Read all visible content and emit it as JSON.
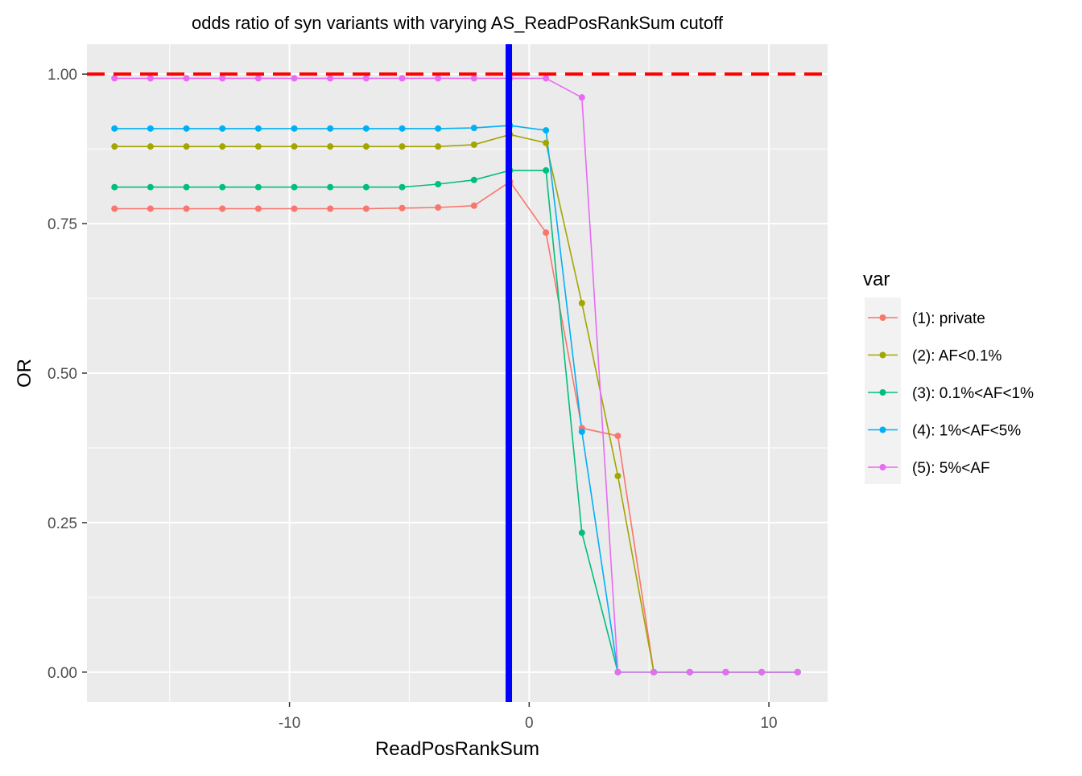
{
  "chart_data": {
    "type": "line",
    "title": "odds ratio of syn variants with varying AS_ReadPosRankSum cutoff",
    "xlabel": "ReadPosRankSum",
    "ylabel": "OR",
    "xlim": [
      -18.45,
      12.45
    ],
    "ylim": [
      -0.05,
      1.05
    ],
    "x_ticks": [
      -10,
      0,
      10
    ],
    "x_tick_labels": [
      "-10",
      "0",
      "10"
    ],
    "y_ticks": [
      0.0,
      0.25,
      0.5,
      0.75,
      1.0
    ],
    "y_tick_labels": [
      "0.00",
      "0.25",
      "0.50",
      "0.75",
      "1.00"
    ],
    "grid": true,
    "legend": {
      "title": "var",
      "position": "right"
    },
    "x": [
      -17.3,
      -15.8,
      -14.3,
      -12.8,
      -11.3,
      -9.8,
      -8.3,
      -6.8,
      -5.3,
      -3.8,
      -2.3,
      -0.8,
      0.7,
      2.2,
      3.7,
      5.2,
      6.7,
      8.2,
      9.7,
      11.2
    ],
    "series": [
      {
        "name": "(1): private",
        "color": "#F8766D",
        "values": [
          0.775,
          0.775,
          0.775,
          0.775,
          0.775,
          0.775,
          0.775,
          0.775,
          0.776,
          0.777,
          0.78,
          0.82,
          0.735,
          0.408,
          0.395,
          0.0,
          0.0,
          0.0,
          0.0,
          0.0
        ]
      },
      {
        "name": "(2): AF<0.1%",
        "color": "#A3A500",
        "values": [
          0.879,
          0.879,
          0.879,
          0.879,
          0.879,
          0.879,
          0.879,
          0.879,
          0.879,
          0.879,
          0.882,
          0.899,
          0.885,
          0.617,
          0.328,
          0.0,
          0.0,
          0.0,
          0.0,
          0.0
        ]
      },
      {
        "name": "(3): 0.1%<AF<1%",
        "color": "#00BF7D",
        "values": [
          0.811,
          0.811,
          0.811,
          0.811,
          0.811,
          0.811,
          0.811,
          0.811,
          0.811,
          0.816,
          0.823,
          0.839,
          0.839,
          0.233,
          0.0,
          0.0,
          0.0,
          0.0,
          0.0,
          0.0
        ]
      },
      {
        "name": "(4): 1%<AF<5%",
        "color": "#00B0F6",
        "values": [
          0.909,
          0.909,
          0.909,
          0.909,
          0.909,
          0.909,
          0.909,
          0.909,
          0.909,
          0.909,
          0.91,
          0.914,
          0.906,
          0.402,
          0.0,
          0.0,
          0.0,
          0.0,
          0.0,
          0.0
        ]
      },
      {
        "name": "(5): 5%<AF",
        "color": "#E76BF3",
        "values": [
          0.993,
          0.993,
          0.993,
          0.993,
          0.993,
          0.993,
          0.993,
          0.993,
          0.993,
          0.993,
          0.993,
          0.993,
          0.993,
          0.961,
          0.0,
          0.0,
          0.0,
          0.0,
          0.0,
          0.0
        ]
      }
    ],
    "reference_lines": [
      {
        "orientation": "horizontal",
        "value": 1.0,
        "color": "#FF0000",
        "style": "dashed"
      },
      {
        "orientation": "vertical",
        "value": -0.85,
        "color": "#0000FF",
        "style": "solid"
      }
    ]
  }
}
